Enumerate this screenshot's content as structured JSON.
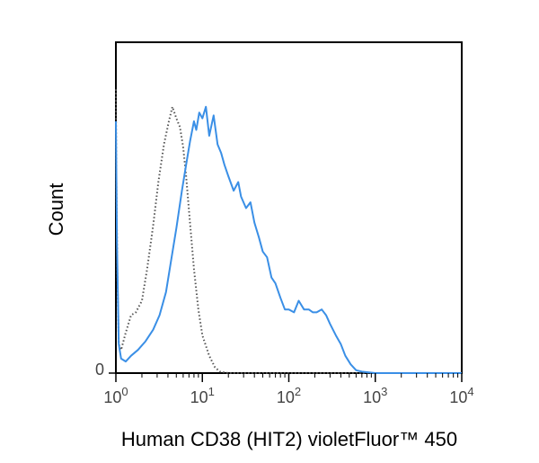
{
  "chart_data": {
    "type": "line",
    "title": "",
    "xlabel": "Human CD38 (HIT2) violetFluor™ 450",
    "ylabel": "Count",
    "x_scale": "log",
    "xlim": [
      1,
      10000
    ],
    "ylim": [
      0,
      100
    ],
    "x_ticks": [
      {
        "value": 1,
        "base": "10",
        "exp": "0"
      },
      {
        "value": 10,
        "base": "10",
        "exp": "1"
      },
      {
        "value": 100,
        "base": "10",
        "exp": "2"
      },
      {
        "value": 1000,
        "base": "10",
        "exp": "3"
      },
      {
        "value": 10000,
        "base": "10",
        "exp": "4"
      }
    ],
    "y_ticks": [
      {
        "value": 0,
        "label": "0"
      }
    ],
    "grid": false,
    "series": [
      {
        "style": "dotted",
        "color": "#555555",
        "points": [
          [
            1.0,
            98
          ],
          [
            1.01,
            70
          ],
          [
            1.04,
            35
          ],
          [
            1.08,
            10
          ],
          [
            1.15,
            8
          ],
          [
            1.3,
            14
          ],
          [
            1.5,
            20
          ],
          [
            1.7,
            21
          ],
          [
            2.0,
            25
          ],
          [
            2.3,
            36
          ],
          [
            2.7,
            51
          ],
          [
            3.1,
            66
          ],
          [
            3.6,
            79
          ],
          [
            4.1,
            87
          ],
          [
            4.5,
            92
          ],
          [
            5.0,
            88
          ],
          [
            5.5,
            85
          ],
          [
            6.0,
            78
          ],
          [
            6.5,
            68
          ],
          [
            7.2,
            52
          ],
          [
            8.0,
            36
          ],
          [
            9.0,
            22
          ],
          [
            10.0,
            13
          ],
          [
            12.0,
            6
          ],
          [
            14.0,
            2
          ],
          [
            16.0,
            0.5
          ],
          [
            20.0,
            0
          ],
          [
            10000,
            0
          ]
        ]
      },
      {
        "style": "solid",
        "color": "#3a8fe6",
        "points": [
          [
            1.0,
            87
          ],
          [
            1.03,
            45
          ],
          [
            1.08,
            10
          ],
          [
            1.15,
            5
          ],
          [
            1.3,
            4
          ],
          [
            1.5,
            6
          ],
          [
            1.8,
            8
          ],
          [
            2.2,
            11
          ],
          [
            2.7,
            15
          ],
          [
            3.2,
            20
          ],
          [
            3.8,
            28
          ],
          [
            4.3,
            38
          ],
          [
            5.0,
            50
          ],
          [
            5.8,
            63
          ],
          [
            6.5,
            72
          ],
          [
            7.2,
            80
          ],
          [
            8.0,
            87
          ],
          [
            8.5,
            84
          ],
          [
            9.2,
            90
          ],
          [
            10.0,
            88
          ],
          [
            11.0,
            92
          ],
          [
            12.0,
            82
          ],
          [
            13.5,
            89
          ],
          [
            15.0,
            79
          ],
          [
            16.5,
            76
          ],
          [
            18.0,
            72
          ],
          [
            20.0,
            68
          ],
          [
            23.0,
            63
          ],
          [
            26.0,
            66
          ],
          [
            28.0,
            61
          ],
          [
            32.0,
            57
          ],
          [
            36.0,
            59
          ],
          [
            40.0,
            52
          ],
          [
            45.0,
            47
          ],
          [
            50.0,
            42
          ],
          [
            56.0,
            40
          ],
          [
            63.0,
            33
          ],
          [
            70.0,
            31
          ],
          [
            80.0,
            26
          ],
          [
            90.0,
            22
          ],
          [
            100.0,
            22
          ],
          [
            115.0,
            21
          ],
          [
            130.0,
            25
          ],
          [
            150.0,
            22
          ],
          [
            170.0,
            22
          ],
          [
            190.0,
            21
          ],
          [
            210.0,
            21
          ],
          [
            240.0,
            22
          ],
          [
            270.0,
            20
          ],
          [
            300.0,
            17
          ],
          [
            350.0,
            13
          ],
          [
            400.0,
            10
          ],
          [
            450.0,
            6
          ],
          [
            520.0,
            3
          ],
          [
            600.0,
            1
          ],
          [
            700.0,
            0.5
          ],
          [
            1000.0,
            0
          ],
          [
            10000,
            0
          ]
        ]
      }
    ]
  }
}
